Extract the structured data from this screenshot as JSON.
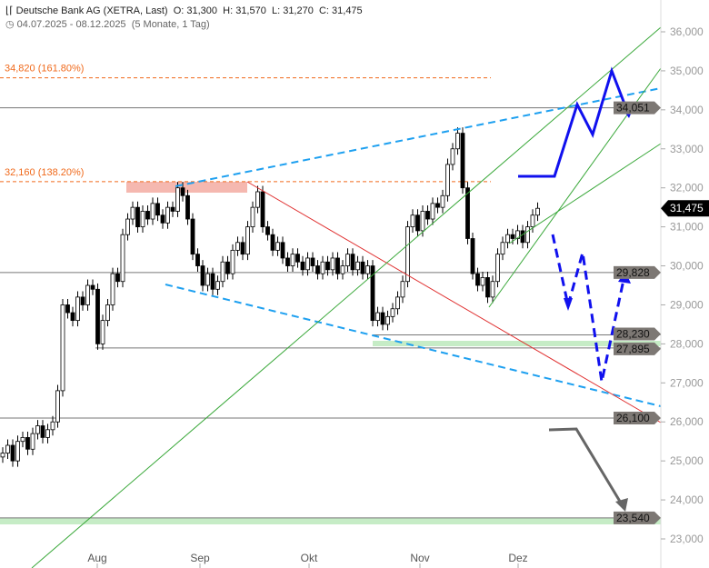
{
  "header": {
    "title": "Deutsche Bank AG (XETRA, Last)",
    "open": "O: 31,300",
    "high": "H: 31,570",
    "low": "L: 31,270",
    "close": "C: 31,475",
    "range": "04.07.2025 - 08.12.2025",
    "period": "(5 Monate, 1 Tag)",
    "icons": [
      "candlestick-icon",
      "clock-icon"
    ]
  },
  "chart_data": {
    "type": "candlestick",
    "ylim": [
      23000,
      36000
    ],
    "yticks": [
      "23,000",
      "24,000",
      "25,000",
      "26,000",
      "27,000",
      "28,000",
      "29,000",
      "30,000",
      "31,000",
      "32,000",
      "33,000",
      "34,000",
      "35,000",
      "36,000"
    ],
    "xticks": [
      "Aug",
      "Sep",
      "Okt",
      "Nov",
      "Dez"
    ],
    "closes": [
      25.2,
      25.4,
      25.0,
      25.5,
      25.6,
      25.3,
      25.7,
      25.9,
      25.6,
      25.8,
      26.0,
      26.8,
      29.0,
      28.8,
      28.6,
      29.2,
      29.0,
      29.5,
      29.4,
      28.0,
      28.6,
      29.0,
      29.8,
      29.6,
      30.8,
      31.2,
      31.5,
      31.0,
      31.4,
      31.2,
      31.6,
      31.3,
      31.1,
      31.5,
      31.4,
      32.0,
      31.8,
      31.2,
      30.3,
      30.0,
      29.5,
      29.8,
      29.4,
      29.6,
      30.1,
      29.8,
      30.4,
      30.6,
      30.3,
      31.0,
      31.5,
      31.9,
      31.0,
      30.8,
      30.4,
      30.6,
      30.2,
      30.0,
      30.3,
      30.1,
      29.9,
      30.2,
      30.0,
      29.8,
      30.1,
      29.9,
      30.2,
      29.8,
      30.0,
      30.3,
      29.9,
      30.1,
      29.8,
      30.0,
      28.6,
      28.8,
      28.5,
      28.7,
      28.9,
      29.2,
      29.6,
      31.0,
      31.3,
      30.9,
      31.4,
      31.2,
      31.6,
      31.5,
      31.8,
      32.6,
      33.0,
      33.4,
      32.0,
      30.7,
      29.8,
      29.5,
      29.7,
      29.2,
      29.6,
      30.3,
      30.6,
      30.8,
      30.7,
      30.9,
      30.6,
      31.0,
      31.3,
      31.475
    ],
    "last_price": "31,475",
    "fib_levels": [
      {
        "label": "34,820 (161.80%)",
        "value": 34820,
        "color": "#f06a1c"
      },
      {
        "label": "32,160 (138.20%)",
        "value": 32160,
        "color": "#f06a1c"
      }
    ],
    "levels": [
      {
        "label": "34,051",
        "value": 34051
      },
      {
        "label": "29,828",
        "value": 29828
      },
      {
        "label": "28,230",
        "value": 28230
      },
      {
        "label": "27,895",
        "value": 27895
      },
      {
        "label": "26,100",
        "value": 26100
      },
      {
        "label": "23,540",
        "value": 23540
      }
    ],
    "colors": {
      "up": "#ffffff",
      "down": "#000000",
      "trend_blue": "#1ea0f0",
      "projection": "#1010ee",
      "red_line": "#e03030",
      "green_line": "#3aa83a",
      "support_zone": "#c6ecc6",
      "resistance_zone": "#f5b8b0"
    }
  }
}
